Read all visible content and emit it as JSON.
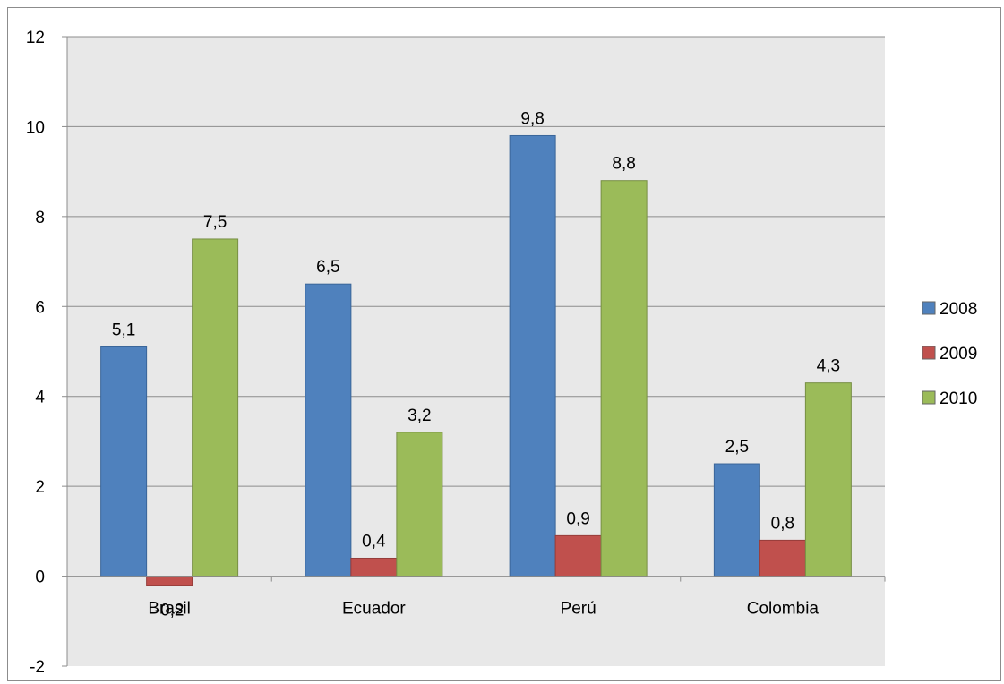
{
  "chart_data": {
    "type": "bar",
    "title": "",
    "xlabel": "",
    "ylabel": "",
    "categories": [
      "Brasil",
      "Ecuador",
      "Perú",
      "Colombia"
    ],
    "series": [
      {
        "name": "2008",
        "color": "#4f81bd",
        "values": [
          5.1,
          6.5,
          9.8,
          2.5
        ],
        "labels": [
          "5,1",
          "6,5",
          "9,8",
          "2,5"
        ]
      },
      {
        "name": "2009",
        "color": "#c0504d",
        "values": [
          -0.2,
          0.4,
          0.9,
          0.8
        ],
        "labels": [
          "-0,2",
          "0,4",
          "0,9",
          "0,8"
        ]
      },
      {
        "name": "2010",
        "color": "#9bbb59",
        "values": [
          7.5,
          3.2,
          8.8,
          4.3
        ],
        "labels": [
          "7,5",
          "3,2",
          "8,8",
          "4,3"
        ]
      }
    ],
    "ylim": [
      -2,
      12
    ],
    "yticks": [
      -2,
      0,
      2,
      4,
      6,
      8,
      10,
      12
    ],
    "ytick_labels": [
      "-2",
      "0",
      "2",
      "4",
      "6",
      "8",
      "10",
      "12"
    ],
    "grid": true,
    "legend_position": "right",
    "plot_background": "#e8e8e8"
  }
}
